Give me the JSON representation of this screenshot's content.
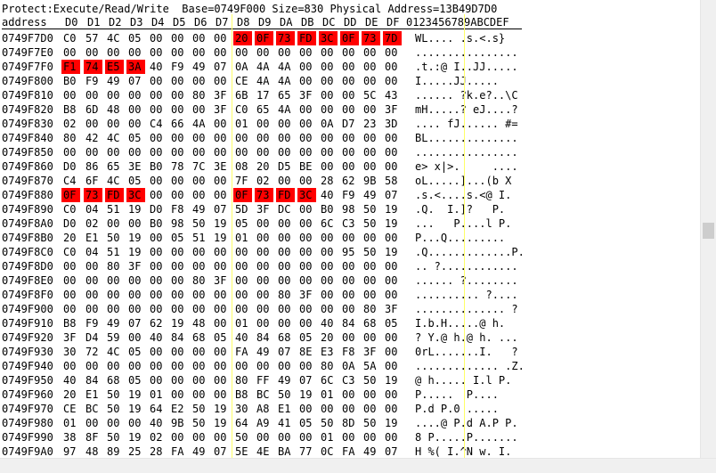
{
  "status_line": "Protect:Execute/Read/Write  Base=0749F000 Size=830 Physical Address=13B49D7D0",
  "columns": {
    "address_label": "address",
    "hex": [
      "D0",
      "D1",
      "D2",
      "D3",
      "D4",
      "D5",
      "D6",
      "D7",
      "D8",
      "D9",
      "DA",
      "DB",
      "DC",
      "DD",
      "DE",
      "DF"
    ],
    "ascii_label": "0123456789ABCDEF"
  },
  "highlight_color": "#ff0000",
  "guide_line_color": "#ffff66",
  "rows": [
    {
      "addr": "0749F7D0",
      "bytes": [
        "C0",
        "57",
        "4C",
        "05",
        "00",
        "00",
        "00",
        "00",
        "20",
        "0F",
        "73",
        "FD",
        "3C",
        "0F",
        "73",
        "7D"
      ],
      "hl": [
        8,
        9,
        10,
        11,
        12,
        13,
        14,
        15
      ],
      "ascii": "WL.... .s.<.s}"
    },
    {
      "addr": "0749F7E0",
      "bytes": [
        "00",
        "00",
        "00",
        "00",
        "00",
        "00",
        "00",
        "00",
        "00",
        "00",
        "00",
        "00",
        "00",
        "00",
        "00",
        "00"
      ],
      "hl": [],
      "ascii": "................"
    },
    {
      "addr": "0749F7F0",
      "bytes": [
        "F1",
        "74",
        "E5",
        "3A",
        "40",
        "F9",
        "49",
        "07",
        "0A",
        "4A",
        "4A",
        "00",
        "00",
        "00",
        "00",
        "00"
      ],
      "hl": [
        0,
        1,
        2,
        3
      ],
      "ascii": ".t.:@ I..JJ....."
    },
    {
      "addr": "0749F800",
      "bytes": [
        "B0",
        "F9",
        "49",
        "07",
        "00",
        "00",
        "00",
        "00",
        "CE",
        "4A",
        "4A",
        "00",
        "00",
        "00",
        "00",
        "00"
      ],
      "hl": [],
      "ascii": "I.....JJ....."
    },
    {
      "addr": "0749F810",
      "bytes": [
        "00",
        "00",
        "00",
        "00",
        "00",
        "00",
        "80",
        "3F",
        "6B",
        "17",
        "65",
        "3F",
        "00",
        "00",
        "5C",
        "43"
      ],
      "hl": [],
      "ascii": "...... ?k.e?..\\C"
    },
    {
      "addr": "0749F820",
      "bytes": [
        "B8",
        "6D",
        "48",
        "00",
        "00",
        "00",
        "00",
        "3F",
        "C0",
        "65",
        "4A",
        "00",
        "00",
        "00",
        "00",
        "3F"
      ],
      "hl": [],
      "ascii": "mH.....? eJ....?"
    },
    {
      "addr": "0749F830",
      "bytes": [
        "02",
        "00",
        "00",
        "00",
        "C4",
        "66",
        "4A",
        "00",
        "01",
        "00",
        "00",
        "00",
        "0A",
        "D7",
        "23",
        "3D"
      ],
      "hl": [],
      "ascii": ".... fJ...... #="
    },
    {
      "addr": "0749F840",
      "bytes": [
        "80",
        "42",
        "4C",
        "05",
        "00",
        "00",
        "00",
        "00",
        "00",
        "00",
        "00",
        "00",
        "00",
        "00",
        "00",
        "00"
      ],
      "hl": [],
      "ascii": "BL.............."
    },
    {
      "addr": "0749F850",
      "bytes": [
        "00",
        "00",
        "00",
        "00",
        "00",
        "00",
        "00",
        "00",
        "00",
        "00",
        "00",
        "00",
        "00",
        "00",
        "00",
        "00"
      ],
      "hl": [],
      "ascii": "................"
    },
    {
      "addr": "0749F860",
      "bytes": [
        "D0",
        "86",
        "65",
        "3E",
        "B0",
        "78",
        "7C",
        "3E",
        "08",
        "20",
        "D5",
        "BE",
        "00",
        "00",
        "00",
        "00"
      ],
      "hl": [],
      "ascii": "e> x|>.     ...."
    },
    {
      "addr": "0749F870",
      "bytes": [
        "C4",
        "6F",
        "4C",
        "05",
        "00",
        "00",
        "00",
        "00",
        "7F",
        "02",
        "00",
        "00",
        "28",
        "62",
        "9B",
        "58"
      ],
      "hl": [],
      "ascii": "oL.....]...(b X"
    },
    {
      "addr": "0749F880",
      "bytes": [
        "0F",
        "73",
        "FD",
        "3C",
        "00",
        "00",
        "00",
        "00",
        "0F",
        "73",
        "FD",
        "3C",
        "40",
        "F9",
        "49",
        "07"
      ],
      "hl": [
        0,
        1,
        2,
        3,
        8,
        9,
        10,
        11
      ],
      "ascii": ".s.<....s.<@ I."
    },
    {
      "addr": "0749F890",
      "bytes": [
        "C0",
        "04",
        "51",
        "19",
        "D0",
        "F8",
        "49",
        "07",
        "5D",
        "3F",
        "DC",
        "00",
        "B0",
        "98",
        "50",
        "19"
      ],
      "hl": [],
      "ascii": ".Q.  I.]?   P."
    },
    {
      "addr": "0749F8A0",
      "bytes": [
        "D0",
        "02",
        "00",
        "00",
        "B0",
        "98",
        "50",
        "19",
        "05",
        "00",
        "00",
        "00",
        "6C",
        "C3",
        "50",
        "19"
      ],
      "hl": [],
      "ascii": "...   P....l P."
    },
    {
      "addr": "0749F8B0",
      "bytes": [
        "20",
        "E1",
        "50",
        "19",
        "00",
        "05",
        "51",
        "19",
        "01",
        "00",
        "00",
        "00",
        "00",
        "00",
        "00",
        "00"
      ],
      "hl": [],
      "ascii": "P...Q........."
    },
    {
      "addr": "0749F8C0",
      "bytes": [
        "C0",
        "04",
        "51",
        "19",
        "00",
        "00",
        "00",
        "00",
        "00",
        "00",
        "00",
        "00",
        "00",
        "95",
        "50",
        "19"
      ],
      "hl": [],
      "ascii": ".Q.............P."
    },
    {
      "addr": "0749F8D0",
      "bytes": [
        "00",
        "00",
        "80",
        "3F",
        "00",
        "00",
        "00",
        "00",
        "00",
        "00",
        "00",
        "00",
        "00",
        "00",
        "00",
        "00"
      ],
      "hl": [],
      "ascii": ".. ?............"
    },
    {
      "addr": "0749F8E0",
      "bytes": [
        "00",
        "00",
        "00",
        "00",
        "00",
        "00",
        "80",
        "3F",
        "00",
        "00",
        "00",
        "00",
        "00",
        "00",
        "00",
        "00"
      ],
      "hl": [],
      "ascii": "...... ?........"
    },
    {
      "addr": "0749F8F0",
      "bytes": [
        "00",
        "00",
        "00",
        "00",
        "00",
        "00",
        "00",
        "00",
        "00",
        "00",
        "80",
        "3F",
        "00",
        "00",
        "00",
        "00"
      ],
      "hl": [],
      "ascii": ".......... ?...."
    },
    {
      "addr": "0749F900",
      "bytes": [
        "00",
        "00",
        "00",
        "00",
        "00",
        "00",
        "00",
        "00",
        "00",
        "00",
        "00",
        "00",
        "00",
        "00",
        "80",
        "3F"
      ],
      "hl": [],
      "ascii": ".............. ?"
    },
    {
      "addr": "0749F910",
      "bytes": [
        "B8",
        "F9",
        "49",
        "07",
        "62",
        "19",
        "48",
        "00",
        "01",
        "00",
        "00",
        "00",
        "40",
        "84",
        "68",
        "05"
      ],
      "hl": [],
      "ascii": "I.b.H.....@ h."
    },
    {
      "addr": "0749F920",
      "bytes": [
        "3F",
        "D4",
        "59",
        "00",
        "40",
        "84",
        "68",
        "05",
        "40",
        "84",
        "68",
        "05",
        "20",
        "00",
        "00",
        "00"
      ],
      "hl": [],
      "ascii": "? Y.@ h.@ h. ..."
    },
    {
      "addr": "0749F930",
      "bytes": [
        "30",
        "72",
        "4C",
        "05",
        "00",
        "00",
        "00",
        "00",
        "FA",
        "49",
        "07",
        "8E",
        "E3",
        "F8",
        "3F",
        "00"
      ],
      "hl": [],
      "ascii": "0rL.......I.   ?"
    },
    {
      "addr": "0749F940",
      "bootes": [],
      "bytes": [
        "00",
        "00",
        "00",
        "00",
        "00",
        "00",
        "00",
        "00",
        "00",
        "00",
        "00",
        "00",
        "80",
        "0A",
        "5A",
        "00"
      ],
      "hl": [],
      "ascii": "............. .Z."
    },
    {
      "addr": "0749F950",
      "bytes": [
        "40",
        "84",
        "68",
        "05",
        "00",
        "00",
        "00",
        "00",
        "80",
        "FF",
        "49",
        "07",
        "6C",
        "C3",
        "50",
        "19"
      ],
      "hl": [],
      "ascii": "@ h..... I.l P."
    },
    {
      "addr": "0749F960",
      "bytes": [
        "20",
        "E1",
        "50",
        "19",
        "01",
        "00",
        "00",
        "00",
        "B8",
        "BC",
        "50",
        "19",
        "01",
        "00",
        "00",
        "00"
      ],
      "hl": [],
      "ascii": "P.....  P...."
    },
    {
      "addr": "0749F970",
      "bytes": [
        "CE",
        "BC",
        "50",
        "19",
        "64",
        "E2",
        "50",
        "19",
        "30",
        "A8",
        "E1",
        "00",
        "00",
        "00",
        "00",
        "00"
      ],
      "hl": [],
      "ascii": "P.d P.0 ....."
    },
    {
      "addr": "0749F980",
      "bytes": [
        "01",
        "00",
        "00",
        "00",
        "40",
        "9B",
        "50",
        "19",
        "64",
        "A9",
        "41",
        "05",
        "50",
        "8D",
        "50",
        "19"
      ],
      "hl": [],
      "ascii": "....@ P.d A.P P."
    },
    {
      "addr": "0749F990",
      "bytes": [
        "38",
        "8F",
        "50",
        "19",
        "02",
        "00",
        "00",
        "00",
        "50",
        "00",
        "00",
        "00",
        "01",
        "00",
        "00",
        "00"
      ],
      "hl": [],
      "ascii": "8 P.....P......."
    },
    {
      "addr": "0749F9A0",
      "bytes": [
        "97",
        "48",
        "89",
        "25",
        "28",
        "FA",
        "49",
        "07",
        "5E",
        "4E",
        "BA",
        "77",
        "0C",
        "FA",
        "49",
        "07"
      ],
      "hl": [],
      "ascii": "H %( I.^N w. I."
    }
  ]
}
